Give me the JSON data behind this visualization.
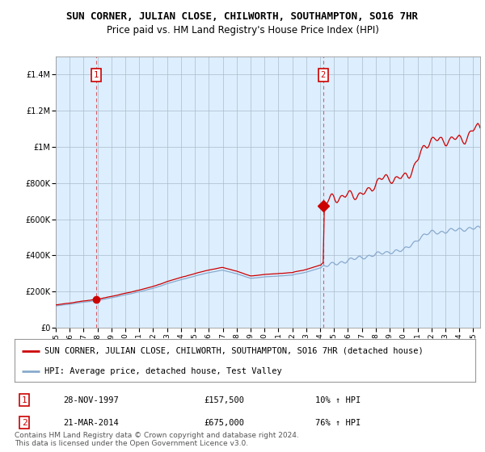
{
  "title": "SUN CORNER, JULIAN CLOSE, CHILWORTH, SOUTHAMPTON, SO16 7HR",
  "subtitle": "Price paid vs. HM Land Registry's House Price Index (HPI)",
  "ylabel_ticks": [
    "£0",
    "£200K",
    "£400K",
    "£600K",
    "£800K",
    "£1M",
    "£1.2M",
    "£1.4M"
  ],
  "ytick_values": [
    0,
    200000,
    400000,
    600000,
    800000,
    1000000,
    1200000,
    1400000
  ],
  "ylim": [
    0,
    1500000
  ],
  "xlim_start": 1995.0,
  "xlim_end": 2025.5,
  "sale1": {
    "date": 1997.91,
    "price": 157500,
    "label": "1",
    "pct": "10% ↑ HPI",
    "display_date": "28-NOV-1997",
    "display_price": "£157,500"
  },
  "sale2": {
    "date": 2014.22,
    "price": 675000,
    "label": "2",
    "pct": "76% ↑ HPI",
    "display_date": "21-MAR-2014",
    "display_price": "£675,000"
  },
  "legend_line1": "SUN CORNER, JULIAN CLOSE, CHILWORTH, SOUTHAMPTON, SO16 7HR (detached house)",
  "legend_line2": "HPI: Average price, detached house, Test Valley",
  "footer": "Contains HM Land Registry data © Crown copyright and database right 2024.\nThis data is licensed under the Open Government Licence v3.0.",
  "property_color": "#cc0000",
  "hpi_color": "#88aacc",
  "plot_bg_color": "#ddeeff",
  "background_color": "#ffffff",
  "grid_color": "#aabbcc",
  "vline_color": "#cc0000",
  "title_fontsize": 9,
  "subtitle_fontsize": 8.5,
  "tick_fontsize": 7,
  "legend_fontsize": 7.5,
  "footer_fontsize": 6.5
}
